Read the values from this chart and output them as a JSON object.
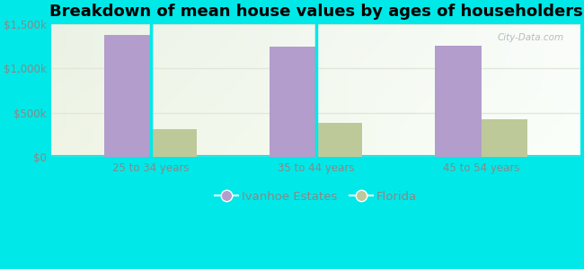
{
  "title": "Breakdown of mean house values by ages of householders",
  "categories": [
    "25 to 34 years",
    "35 to 44 years",
    "45 to 54 years"
  ],
  "ivanhoe_values": [
    1370000,
    1240000,
    1250000
  ],
  "florida_values": [
    320000,
    390000,
    430000
  ],
  "ivanhoe_color": "#b39dcc",
  "florida_color": "#bec99a",
  "background_outer": "#00e8e8",
  "ylim": [
    0,
    1500000
  ],
  "yticks": [
    0,
    500000,
    1000000,
    1500000
  ],
  "ytick_labels": [
    "$0",
    "$500k",
    "$1,000k",
    "$1,500k"
  ],
  "legend_labels": [
    "Ivanhoe Estates",
    "Florida"
  ],
  "bar_width": 0.28,
  "title_fontsize": 13,
  "tick_fontsize": 8.5,
  "legend_fontsize": 9.5,
  "grid_color": "#e0e8d8",
  "tick_color": "#888888"
}
